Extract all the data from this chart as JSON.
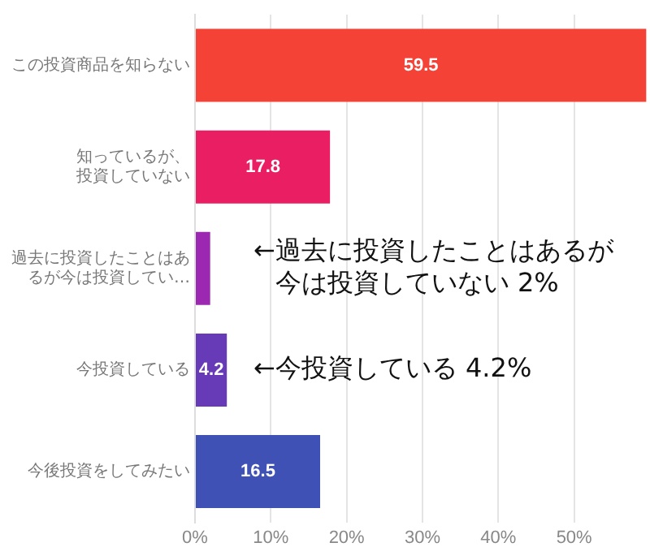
{
  "chart_data": {
    "type": "bar",
    "orientation": "horizontal",
    "categories": [
      "この投資商品を知らない",
      "知っているが、投資していない",
      "過去に投資したことはあるが今は投資してい…",
      "今投資している",
      "今後投資をしてみたい"
    ],
    "values": [
      59.5,
      17.8,
      2,
      4.2,
      16.5
    ],
    "colors": [
      "#f44336",
      "#e91e63",
      "#9c27b0",
      "#673ab7",
      "#3f51b5"
    ],
    "value_labels": [
      "59.5",
      "17.8",
      null,
      "4.2",
      "16.5"
    ],
    "xlim": [
      0,
      60
    ],
    "xticks": [
      {
        "value": 0,
        "label": "0%"
      },
      {
        "value": 10,
        "label": "10%"
      },
      {
        "value": 20,
        "label": "20%"
      },
      {
        "value": 30,
        "label": "30%"
      },
      {
        "value": 40,
        "label": "40%"
      },
      {
        "value": 50,
        "label": "50%"
      }
    ],
    "grid": "x",
    "annotations": [
      "←過去に投資したことはあるが今は投資していない 2%",
      "←今投資している 4.2%"
    ]
  }
}
